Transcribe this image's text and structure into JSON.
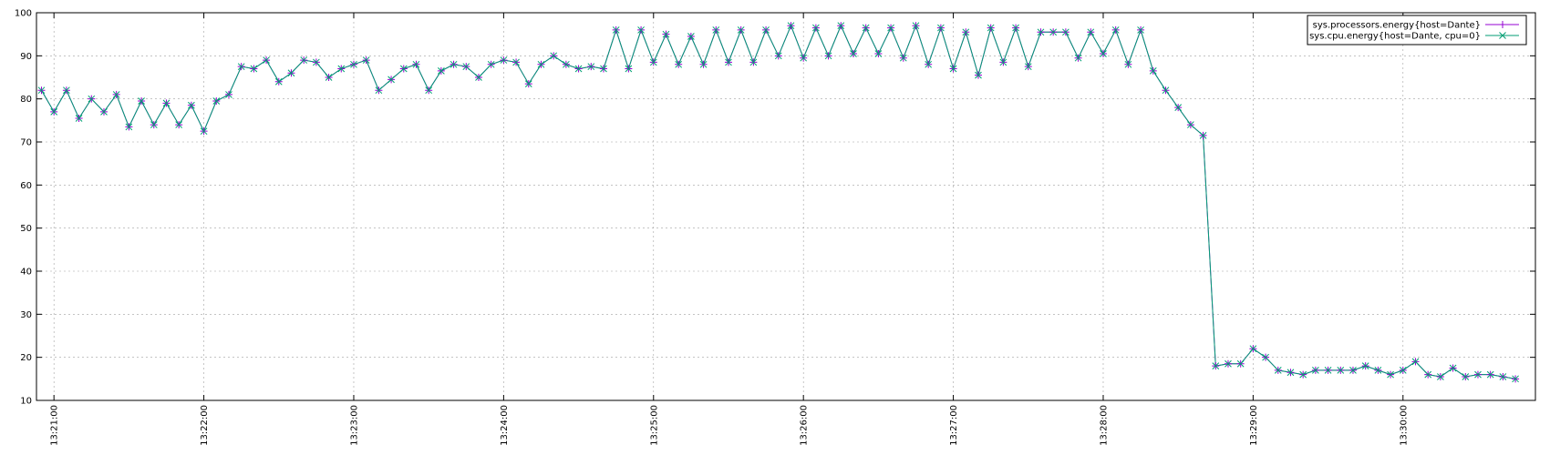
{
  "chart_data": {
    "type": "line",
    "x": [
      "13:20:55",
      "13:21:00",
      "13:21:05",
      "13:21:10",
      "13:21:15",
      "13:21:20",
      "13:21:25",
      "13:21:30",
      "13:21:35",
      "13:21:40",
      "13:21:45",
      "13:21:50",
      "13:21:55",
      "13:22:00",
      "13:22:05",
      "13:22:10",
      "13:22:15",
      "13:22:20",
      "13:22:25",
      "13:22:30",
      "13:22:35",
      "13:22:40",
      "13:22:45",
      "13:22:50",
      "13:22:55",
      "13:23:00",
      "13:23:05",
      "13:23:10",
      "13:23:15",
      "13:23:20",
      "13:23:25",
      "13:23:30",
      "13:23:35",
      "13:23:40",
      "13:23:45",
      "13:23:50",
      "13:23:55",
      "13:24:00",
      "13:24:05",
      "13:24:10",
      "13:24:15",
      "13:24:20",
      "13:24:25",
      "13:24:30",
      "13:24:35",
      "13:24:40",
      "13:24:45",
      "13:24:50",
      "13:24:55",
      "13:25:00",
      "13:25:05",
      "13:25:10",
      "13:25:15",
      "13:25:20",
      "13:25:25",
      "13:25:30",
      "13:25:35",
      "13:25:40",
      "13:25:45",
      "13:25:50",
      "13:25:55",
      "13:26:00",
      "13:26:05",
      "13:26:10",
      "13:26:15",
      "13:26:20",
      "13:26:25",
      "13:26:30",
      "13:26:35",
      "13:26:40",
      "13:26:45",
      "13:26:50",
      "13:26:55",
      "13:27:00",
      "13:27:05",
      "13:27:10",
      "13:27:15",
      "13:27:20",
      "13:27:25",
      "13:27:30",
      "13:27:35",
      "13:27:40",
      "13:27:45",
      "13:27:50",
      "13:27:55",
      "13:28:00",
      "13:28:05",
      "13:28:10",
      "13:28:15",
      "13:28:20",
      "13:28:25",
      "13:28:30",
      "13:28:35",
      "13:28:40",
      "13:28:45",
      "13:28:50",
      "13:28:55",
      "13:29:00",
      "13:29:05",
      "13:29:10",
      "13:29:15",
      "13:29:20",
      "13:29:25",
      "13:29:30",
      "13:29:35",
      "13:29:40",
      "13:29:45",
      "13:29:50",
      "13:29:55",
      "13:30:00",
      "13:30:05",
      "13:30:10",
      "13:30:15",
      "13:30:20",
      "13:30:25",
      "13:30:30",
      "13:30:35",
      "13:30:40",
      "13:30:45"
    ],
    "series": [
      {
        "name": "sys.processors.energy{host=Dante}",
        "color": "#9400d3",
        "marker": "+",
        "values": [
          82,
          77,
          82,
          75.5,
          80,
          77,
          81,
          73.5,
          79.5,
          74,
          79,
          74,
          78.5,
          72.5,
          79.5,
          81,
          87.5,
          87,
          89,
          84,
          86,
          89,
          88.5,
          85,
          87,
          88,
          89,
          82,
          84.5,
          87,
          88,
          82,
          86.5,
          88,
          87.5,
          85,
          88,
          89,
          88.5,
          83.5,
          88,
          90,
          88,
          87,
          87.5,
          87,
          96,
          87,
          96,
          88.5,
          95,
          88,
          94.5,
          88,
          96,
          88.5,
          96,
          88.5,
          96,
          90,
          97,
          89.5,
          96.5,
          90,
          97,
          90.5,
          96.5,
          90.5,
          96.5,
          89.5,
          97,
          88,
          96.5,
          87,
          95.5,
          85.5,
          96.5,
          88.5,
          96.5,
          87.5,
          95.5,
          95.5,
          95.5,
          89.5,
          95.5,
          90.5,
          96,
          88,
          96,
          86.5,
          82,
          78,
          74,
          71.5,
          18,
          18.5,
          18.5,
          22,
          20,
          17,
          16.5,
          16,
          17,
          17,
          17,
          17,
          18,
          17,
          16,
          17,
          19,
          16,
          15.5,
          17.5,
          15.5,
          16,
          16,
          15.5,
          15
        ]
      },
      {
        "name": "sys.cpu.energy{host=Dante, cpu=0}",
        "color": "#009e73",
        "marker": "x",
        "values": [
          82,
          77,
          82,
          75.5,
          80,
          77,
          81,
          73.5,
          79.5,
          74,
          79,
          74,
          78.5,
          72.5,
          79.5,
          81,
          87.5,
          87,
          89,
          84,
          86,
          89,
          88.5,
          85,
          87,
          88,
          89,
          82,
          84.5,
          87,
          88,
          82,
          86.5,
          88,
          87.5,
          85,
          88,
          89,
          88.5,
          83.5,
          88,
          90,
          88,
          87,
          87.5,
          87,
          96,
          87,
          96,
          88.5,
          95,
          88,
          94.5,
          88,
          96,
          88.5,
          96,
          88.5,
          96,
          90,
          97,
          89.5,
          96.5,
          90,
          97,
          90.5,
          96.5,
          90.5,
          96.5,
          89.5,
          97,
          88,
          96.5,
          87,
          95.5,
          85.5,
          96.5,
          88.5,
          96.5,
          87.5,
          95.5,
          95.5,
          95.5,
          89.5,
          95.5,
          90.5,
          96,
          88,
          96,
          86.5,
          82,
          78,
          74,
          71.5,
          18,
          18.5,
          18.5,
          22,
          20,
          17,
          16.5,
          16,
          17,
          17,
          17,
          17,
          18,
          17,
          16,
          17,
          19,
          16,
          15.5,
          17.5,
          15.5,
          16,
          16,
          15.5,
          15
        ]
      }
    ],
    "xlim": [
      "13:20:53",
      "13:30:53"
    ],
    "xticks": [
      "13:21:00",
      "13:22:00",
      "13:23:00",
      "13:24:00",
      "13:25:00",
      "13:26:00",
      "13:27:00",
      "13:28:00",
      "13:29:00",
      "13:30:00"
    ],
    "ylim": [
      10,
      100
    ],
    "yticks": [
      10,
      20,
      30,
      40,
      50,
      60,
      70,
      80,
      90,
      100
    ],
    "grid": true,
    "legend": "top-right"
  }
}
